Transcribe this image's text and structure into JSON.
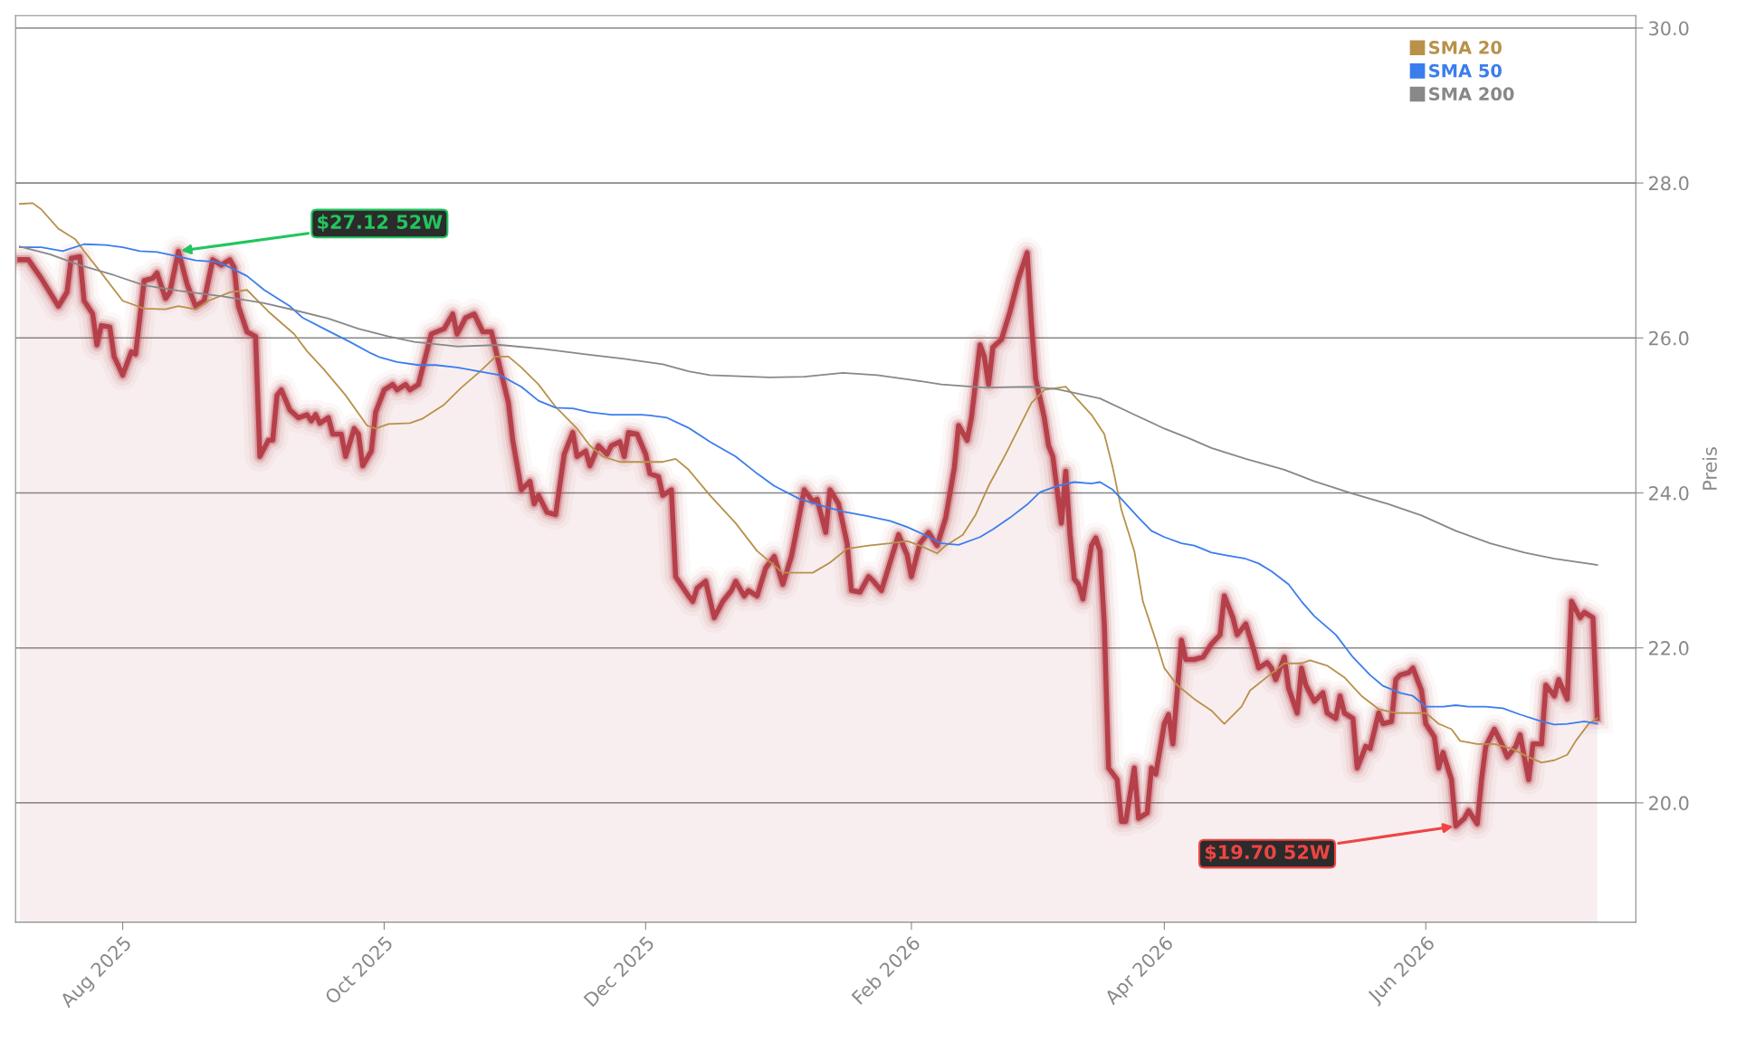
{
  "chart_data": {
    "type": "line",
    "ylabel": "Preis",
    "xlim": [
      "2025-07-07",
      "2026-07-20"
    ],
    "ylim": [
      18.46,
      30.16
    ],
    "xticks": [
      {
        "value": "2025-08",
        "label": "Aug 2025"
      },
      {
        "value": "2025-10",
        "label": "Oct 2025"
      },
      {
        "value": "2025-12",
        "label": "Dec 2025"
      },
      {
        "value": "2026-02",
        "label": "Feb 2026"
      },
      {
        "value": "2026-04",
        "label": "Apr 2026"
      },
      {
        "value": "2026-06",
        "label": "Jun 2026"
      }
    ],
    "yticks": [
      {
        "value": 20,
        "label": "20.0"
      },
      {
        "value": 22,
        "label": "22.0"
      },
      {
        "value": 24,
        "label": "24.0"
      },
      {
        "value": 26,
        "label": "26.0"
      },
      {
        "value": 28,
        "label": "28.0"
      },
      {
        "value": 30,
        "label": "30.0"
      }
    ],
    "grid": "y",
    "legend": "top right",
    "annotations": [
      {
        "text": "$27.12 52W",
        "x": "2025-08-14",
        "y": 27.12
      },
      {
        "text": "$19.70 52W",
        "x": "2026-06-08",
        "y": 19.7
      }
    ],
    "series": [
      {
        "type": "area",
        "color": "#b5404a",
        "x": [
          "2025-07-08",
          "2025-07-10",
          "2025-07-13",
          "2025-07-17",
          "2025-07-19",
          "2025-07-20",
          "2025-07-22",
          "2025-07-23",
          "2025-07-25",
          "2025-07-26",
          "2025-07-27",
          "2025-07-29",
          "2025-07-30",
          "2025-08-01",
          "2025-08-03",
          "2025-08-04",
          "2025-08-06",
          "2025-08-08",
          "2025-08-09",
          "2025-08-11",
          "2025-08-12",
          "2025-08-14",
          "2025-08-16",
          "2025-08-18",
          "2025-08-20",
          "2025-08-22",
          "2025-08-24",
          "2025-08-26",
          "2025-08-27",
          "2025-08-28",
          "2025-08-30",
          "2025-09-01",
          "2025-09-02",
          "2025-09-04",
          "2025-09-05",
          "2025-09-06",
          "2025-09-07",
          "2025-09-09",
          "2025-09-11",
          "2025-09-13",
          "2025-09-14",
          "2025-09-15",
          "2025-09-16",
          "2025-09-18",
          "2025-09-19",
          "2025-09-21",
          "2025-09-22",
          "2025-09-24",
          "2025-09-25",
          "2025-09-26",
          "2025-09-28",
          "2025-09-29",
          "2025-10-01",
          "2025-10-03",
          "2025-10-04",
          "2025-10-06",
          "2025-10-07",
          "2025-10-09",
          "2025-10-10",
          "2025-10-12",
          "2025-10-15",
          "2025-10-17",
          "2025-10-18",
          "2025-10-20",
          "2025-10-22",
          "2025-10-24",
          "2025-10-26",
          "2025-10-28",
          "2025-10-30",
          "2025-10-31",
          "2025-11-02",
          "2025-11-04",
          "2025-11-05",
          "2025-11-06",
          "2025-11-08",
          "2025-11-10",
          "2025-11-12",
          "2025-11-14",
          "2025-11-15",
          "2025-11-17",
          "2025-11-18",
          "2025-11-20",
          "2025-11-22",
          "2025-11-23",
          "2025-11-25",
          "2025-11-26",
          "2025-11-27",
          "2025-11-29",
          "2025-12-01",
          "2025-12-02",
          "2025-12-04",
          "2025-12-05",
          "2025-12-07",
          "2025-12-08",
          "2025-12-11",
          "2025-12-12",
          "2025-12-13",
          "2025-12-15",
          "2025-12-17",
          "2025-12-19",
          "2025-12-21",
          "2025-12-22",
          "2025-12-24",
          "2025-12-25",
          "2025-12-27",
          "2025-12-29",
          "2025-12-31",
          "2026-01-02",
          "2026-01-04",
          "2026-01-05",
          "2026-01-07",
          "2026-01-09",
          "2026-01-10",
          "2026-01-12",
          "2026-01-13",
          "2026-01-15",
          "2026-01-17",
          "2026-01-18",
          "2026-01-20",
          "2026-01-22",
          "2026-01-23",
          "2026-01-25",
          "2026-01-27",
          "2026-01-29",
          "2026-01-31",
          "2026-02-01",
          "2026-02-03",
          "2026-02-05",
          "2026-02-07",
          "2026-02-09",
          "2026-02-11",
          "2026-02-12",
          "2026-02-14",
          "2026-02-15",
          "2026-02-17",
          "2026-02-18",
          "2026-02-19",
          "2026-02-20",
          "2026-02-22",
          "2026-02-24",
          "2026-02-26",
          "2026-02-28",
          "2026-03-01",
          "2026-03-02",
          "2026-03-04",
          "2026-03-05",
          "2026-03-06",
          "2026-03-08",
          "2026-03-09",
          "2026-03-10",
          "2026-03-11",
          "2026-03-12",
          "2026-03-13",
          "2026-03-15",
          "2026-03-16",
          "2026-03-17",
          "2026-03-18",
          "2026-03-19",
          "2026-03-21",
          "2026-03-22",
          "2026-03-23",
          "2026-03-25",
          "2026-03-26",
          "2026-03-28",
          "2026-03-29",
          "2026-03-30",
          "2026-04-01",
          "2026-04-02",
          "2026-04-03",
          "2026-04-05",
          "2026-04-06",
          "2026-04-08",
          "2026-04-10",
          "2026-04-12",
          "2026-04-14",
          "2026-04-15",
          "2026-04-17",
          "2026-04-18",
          "2026-04-20",
          "2026-04-22",
          "2026-04-23",
          "2026-04-25",
          "2026-04-26",
          "2026-04-27",
          "2026-04-29",
          "2026-04-30",
          "2026-05-02",
          "2026-05-03",
          "2026-05-04",
          "2026-05-06",
          "2026-05-08",
          "2026-05-09",
          "2026-05-11",
          "2026-05-12",
          "2026-05-13",
          "2026-05-15",
          "2026-05-16",
          "2026-05-18",
          "2026-05-19",
          "2026-05-21",
          "2026-05-22",
          "2026-05-24",
          "2026-05-25",
          "2026-05-26",
          "2026-05-28",
          "2026-05-29",
          "2026-05-31",
          "2026-06-01",
          "2026-06-03",
          "2026-06-04",
          "2026-06-05",
          "2026-06-07",
          "2026-06-08",
          "2026-06-10",
          "2026-06-11",
          "2026-06-13",
          "2026-06-14",
          "2026-06-15",
          "2026-06-17",
          "2026-06-19",
          "2026-06-20",
          "2026-06-22",
          "2026-06-23",
          "2026-06-25",
          "2026-06-26",
          "2026-06-28",
          "2026-06-29",
          "2026-07-01",
          "2026-07-02",
          "2026-07-04",
          "2026-07-05",
          "2026-07-07",
          "2026-07-08",
          "2026-07-10",
          "2026-07-11"
        ],
        "values": [
          27.01,
          27.01,
          26.77,
          26.41,
          26.59,
          27.03,
          27.05,
          26.48,
          26.31,
          25.91,
          26.16,
          26.14,
          25.76,
          25.52,
          25.82,
          25.79,
          26.74,
          26.77,
          26.84,
          26.51,
          26.59,
          27.12,
          26.7,
          26.41,
          26.48,
          27.01,
          26.94,
          27.01,
          26.91,
          26.41,
          26.08,
          26.02,
          24.47,
          24.68,
          24.68,
          25.26,
          25.33,
          25.07,
          24.97,
          25.01,
          24.93,
          25.01,
          24.9,
          24.97,
          24.76,
          24.76,
          24.47,
          24.83,
          24.76,
          24.35,
          24.54,
          25.04,
          25.33,
          25.4,
          25.33,
          25.4,
          25.33,
          25.4,
          25.62,
          26.05,
          26.12,
          26.31,
          26.05,
          26.26,
          26.31,
          26.08,
          26.08,
          25.62,
          25.16,
          24.68,
          24.04,
          24.15,
          23.86,
          23.97,
          23.75,
          23.72,
          24.5,
          24.78,
          24.47,
          24.54,
          24.35,
          24.61,
          24.5,
          24.61,
          24.66,
          24.47,
          24.78,
          24.76,
          24.5,
          24.25,
          24.21,
          23.97,
          24.04,
          22.92,
          22.67,
          22.6,
          22.77,
          22.86,
          22.39,
          22.6,
          22.74,
          22.86,
          22.67,
          22.74,
          22.67,
          23.03,
          23.18,
          22.82,
          23.18,
          23.46,
          24.04,
          23.89,
          23.92,
          23.49,
          24.04,
          23.86,
          23.35,
          22.74,
          22.72,
          22.92,
          22.87,
          22.74,
          23.1,
          23.46,
          23.2,
          22.92,
          23.35,
          23.49,
          23.32,
          23.68,
          24.32,
          24.87,
          24.68,
          24.97,
          25.91,
          25.76,
          25.4,
          25.88,
          25.98,
          26.34,
          26.77,
          27.1,
          26.19,
          25.47,
          24.97,
          24.61,
          24.47,
          23.61,
          24.28,
          23.46,
          22.89,
          22.82,
          22.63,
          23.32,
          23.42,
          23.25,
          22.31,
          20.45,
          20.3,
          19.76,
          19.76,
          20.45,
          19.8,
          19.87,
          20.45,
          20.37,
          21.02,
          21.14,
          20.76,
          22.1,
          21.85,
          21.85,
          21.88,
          22.05,
          22.17,
          22.67,
          22.39,
          22.17,
          22.31,
          21.95,
          21.74,
          21.81,
          21.74,
          21.59,
          21.88,
          21.48,
          21.16,
          21.74,
          21.52,
          21.31,
          21.42,
          21.16,
          21.09,
          21.38,
          21.16,
          21.09,
          20.45,
          20.73,
          20.7,
          21.16,
          21.02,
          21.05,
          21.59,
          21.65,
          21.68,
          21.74,
          21.45,
          21.02,
          20.85,
          20.45,
          20.65,
          20.3,
          19.7,
          19.8,
          19.9,
          19.73,
          20.3,
          20.73,
          20.95,
          20.73,
          20.59,
          20.73,
          20.88,
          20.3,
          20.76,
          20.76,
          21.52,
          21.38,
          21.59,
          21.34,
          22.6,
          22.39,
          22.46,
          22.39,
          21.09
        ]
      },
      {
        "name": "SMA 20",
        "color": "#b8914a",
        "x": [
          "2025-07-08",
          "2025-07-11",
          "2025-07-13",
          "2025-07-17",
          "2025-07-21",
          "2025-07-23",
          "2025-07-27",
          "2025-08-01",
          "2025-08-06",
          "2025-08-11",
          "2025-08-14",
          "2025-08-18",
          "2025-08-21",
          "2025-08-26",
          "2025-08-30",
          "2025-09-04",
          "2025-09-10",
          "2025-09-13",
          "2025-09-17",
          "2025-09-22",
          "2025-09-27",
          "2025-09-29",
          "2025-10-02",
          "2025-10-07",
          "2025-10-10",
          "2025-10-15",
          "2025-10-19",
          "2025-10-23",
          "2025-10-27",
          "2025-10-30",
          "2025-11-02",
          "2025-11-06",
          "2025-11-10",
          "2025-11-15",
          "2025-11-18",
          "2025-11-21",
          "2025-11-25",
          "2025-11-30",
          "2025-12-05",
          "2025-12-08",
          "2025-12-11",
          "2025-12-16",
          "2025-12-22",
          "2025-12-27",
          "2026-01-02",
          "2026-01-09",
          "2026-01-13",
          "2026-01-17",
          "2026-01-22",
          "2026-01-27",
          "2026-01-31",
          "2026-02-03",
          "2026-02-07",
          "2026-02-09",
          "2026-02-13",
          "2026-02-16",
          "2026-02-19",
          "2026-02-23",
          "2026-02-26",
          "2026-03-01",
          "2026-03-04",
          "2026-03-09",
          "2026-03-12",
          "2026-03-15",
          "2026-03-18",
          "2026-03-20",
          "2026-03-22",
          "2026-03-25",
          "2026-03-27",
          "2026-03-30",
          "2026-04-01",
          "2026-04-04",
          "2026-04-08",
          "2026-04-12",
          "2026-04-15",
          "2026-04-19",
          "2026-04-21",
          "2026-04-26",
          "2026-04-29",
          "2026-05-03",
          "2026-05-05",
          "2026-05-09",
          "2026-05-13",
          "2026-05-17",
          "2026-05-21",
          "2026-05-25",
          "2026-05-28",
          "2026-06-01",
          "2026-06-04",
          "2026-06-07",
          "2026-06-09",
          "2026-06-13",
          "2026-06-17",
          "2026-06-21",
          "2026-06-25",
          "2026-06-28",
          "2026-07-01",
          "2026-07-04",
          "2026-07-06",
          "2026-07-09",
          "2026-07-11"
        ],
        "values": [
          27.73,
          27.74,
          27.66,
          27.41,
          27.27,
          27.12,
          26.84,
          26.48,
          26.38,
          26.37,
          26.41,
          26.37,
          26.48,
          26.59,
          26.62,
          26.34,
          26.05,
          25.83,
          25.59,
          25.26,
          24.87,
          24.83,
          24.89,
          24.9,
          24.96,
          25.14,
          25.36,
          25.55,
          25.76,
          25.76,
          25.62,
          25.4,
          25.11,
          24.83,
          24.61,
          24.47,
          24.4,
          24.4,
          24.4,
          24.44,
          24.3,
          23.97,
          23.61,
          23.25,
          22.97,
          22.97,
          23.1,
          23.28,
          23.32,
          23.35,
          23.38,
          23.32,
          23.22,
          23.32,
          23.46,
          23.72,
          24.09,
          24.5,
          24.83,
          25.16,
          25.33,
          25.37,
          25.19,
          25.01,
          24.76,
          24.32,
          23.78,
          23.25,
          22.6,
          22.1,
          21.74,
          21.52,
          21.34,
          21.19,
          21.02,
          21.24,
          21.45,
          21.67,
          21.8,
          21.8,
          21.84,
          21.77,
          21.62,
          21.38,
          21.21,
          21.16,
          21.16,
          21.16,
          21.02,
          20.95,
          20.8,
          20.76,
          20.76,
          20.7,
          20.59,
          20.52,
          20.55,
          20.62,
          20.8,
          21.02,
          21.09
        ]
      },
      {
        "name": "SMA 50",
        "color": "#3b7ded",
        "x": [
          "2025-07-08",
          "2025-07-13",
          "2025-07-18",
          "2025-07-23",
          "2025-07-28",
          "2025-08-01",
          "2025-08-05",
          "2025-08-09",
          "2025-08-14",
          "2025-08-18",
          "2025-08-23",
          "2025-08-26",
          "2025-08-30",
          "2025-09-03",
          "2025-09-09",
          "2025-09-12",
          "2025-09-18",
          "2025-09-23",
          "2025-09-28",
          "2025-09-30",
          "2025-10-04",
          "2025-10-09",
          "2025-10-13",
          "2025-10-18",
          "2025-10-23",
          "2025-10-28",
          "2025-11-02",
          "2025-11-06",
          "2025-11-10",
          "2025-11-14",
          "2025-11-18",
          "2025-11-23",
          "2025-11-30",
          "2025-12-02",
          "2025-12-06",
          "2025-12-11",
          "2025-12-16",
          "2025-12-22",
          "2025-12-27",
          "2025-12-31",
          "2026-01-06",
          "2026-01-12",
          "2026-01-16",
          "2026-01-21",
          "2026-01-27",
          "2026-01-31",
          "2026-02-04",
          "2026-02-08",
          "2026-02-12",
          "2026-02-17",
          "2026-02-20",
          "2026-02-24",
          "2026-02-28",
          "2026-03-03",
          "2026-03-07",
          "2026-03-11",
          "2026-03-15",
          "2026-03-17",
          "2026-03-20",
          "2026-03-23",
          "2026-03-26",
          "2026-03-29",
          "2026-04-01",
          "2026-04-05",
          "2026-04-08",
          "2026-04-12",
          "2026-04-16",
          "2026-04-20",
          "2026-04-23",
          "2026-04-26",
          "2026-04-30",
          "2026-05-03",
          "2026-05-06",
          "2026-05-11",
          "2026-05-15",
          "2026-05-19",
          "2026-05-22",
          "2026-05-26",
          "2026-05-29",
          "2026-06-01",
          "2026-06-05",
          "2026-06-08",
          "2026-06-11",
          "2026-06-15",
          "2026-06-19",
          "2026-06-23",
          "2026-06-28",
          "2026-07-01",
          "2026-07-04",
          "2026-07-08",
          "2026-07-11"
        ],
        "values": [
          27.17,
          27.17,
          27.12,
          27.21,
          27.2,
          27.17,
          27.12,
          27.11,
          27.05,
          27.0,
          26.98,
          26.91,
          26.8,
          26.62,
          26.41,
          26.26,
          26.09,
          25.95,
          25.8,
          25.75,
          25.69,
          25.65,
          25.65,
          25.62,
          25.57,
          25.52,
          25.37,
          25.19,
          25.1,
          25.09,
          25.04,
          25.01,
          25.01,
          25.0,
          24.97,
          24.84,
          24.66,
          24.47,
          24.25,
          24.09,
          23.92,
          23.82,
          23.76,
          23.71,
          23.64,
          23.56,
          23.46,
          23.35,
          23.33,
          23.43,
          23.53,
          23.68,
          23.85,
          24.01,
          24.09,
          24.14,
          24.12,
          24.14,
          24.04,
          23.86,
          23.68,
          23.51,
          23.43,
          23.35,
          23.32,
          23.23,
          23.19,
          23.15,
          23.09,
          22.99,
          22.82,
          22.6,
          22.41,
          22.17,
          21.88,
          21.65,
          21.51,
          21.42,
          21.38,
          21.24,
          21.24,
          21.26,
          21.24,
          21.24,
          21.22,
          21.14,
          21.05,
          21.01,
          21.02,
          21.05,
          21.02
        ]
      },
      {
        "name": "SMA 200",
        "color": "#888888",
        "x": [
          "2025-07-08",
          "2025-07-15",
          "2025-07-22",
          "2025-07-30",
          "2025-08-06",
          "2025-08-14",
          "2025-08-24",
          "2025-09-03",
          "2025-09-10",
          "2025-09-18",
          "2025-09-25",
          "2025-10-02",
          "2025-10-08",
          "2025-10-18",
          "2025-10-28",
          "2025-11-07",
          "2025-11-17",
          "2025-11-26",
          "2025-12-05",
          "2025-12-11",
          "2025-12-16",
          "2025-12-30",
          "2026-01-07",
          "2026-01-16",
          "2026-01-24",
          "2026-02-01",
          "2026-02-08",
          "2026-02-18",
          "2026-03-01",
          "2026-03-07",
          "2026-03-17",
          "2026-03-25",
          "2026-04-01",
          "2026-04-07",
          "2026-04-12",
          "2026-04-20",
          "2026-04-29",
          "2026-05-06",
          "2026-05-15",
          "2026-05-23",
          "2026-05-31",
          "2026-06-08",
          "2026-06-16",
          "2026-06-24",
          "2026-07-01",
          "2026-07-11"
        ],
        "values": [
          27.18,
          27.08,
          26.94,
          26.81,
          26.68,
          26.61,
          26.54,
          26.45,
          26.36,
          26.25,
          26.12,
          26.02,
          25.95,
          25.89,
          25.91,
          25.86,
          25.79,
          25.73,
          25.66,
          25.57,
          25.52,
          25.49,
          25.5,
          25.55,
          25.52,
          25.46,
          25.4,
          25.36,
          25.37,
          25.34,
          25.22,
          25.01,
          24.83,
          24.7,
          24.58,
          24.44,
          24.3,
          24.15,
          23.99,
          23.86,
          23.71,
          23.51,
          23.35,
          23.23,
          23.15,
          23.07
        ]
      }
    ]
  }
}
